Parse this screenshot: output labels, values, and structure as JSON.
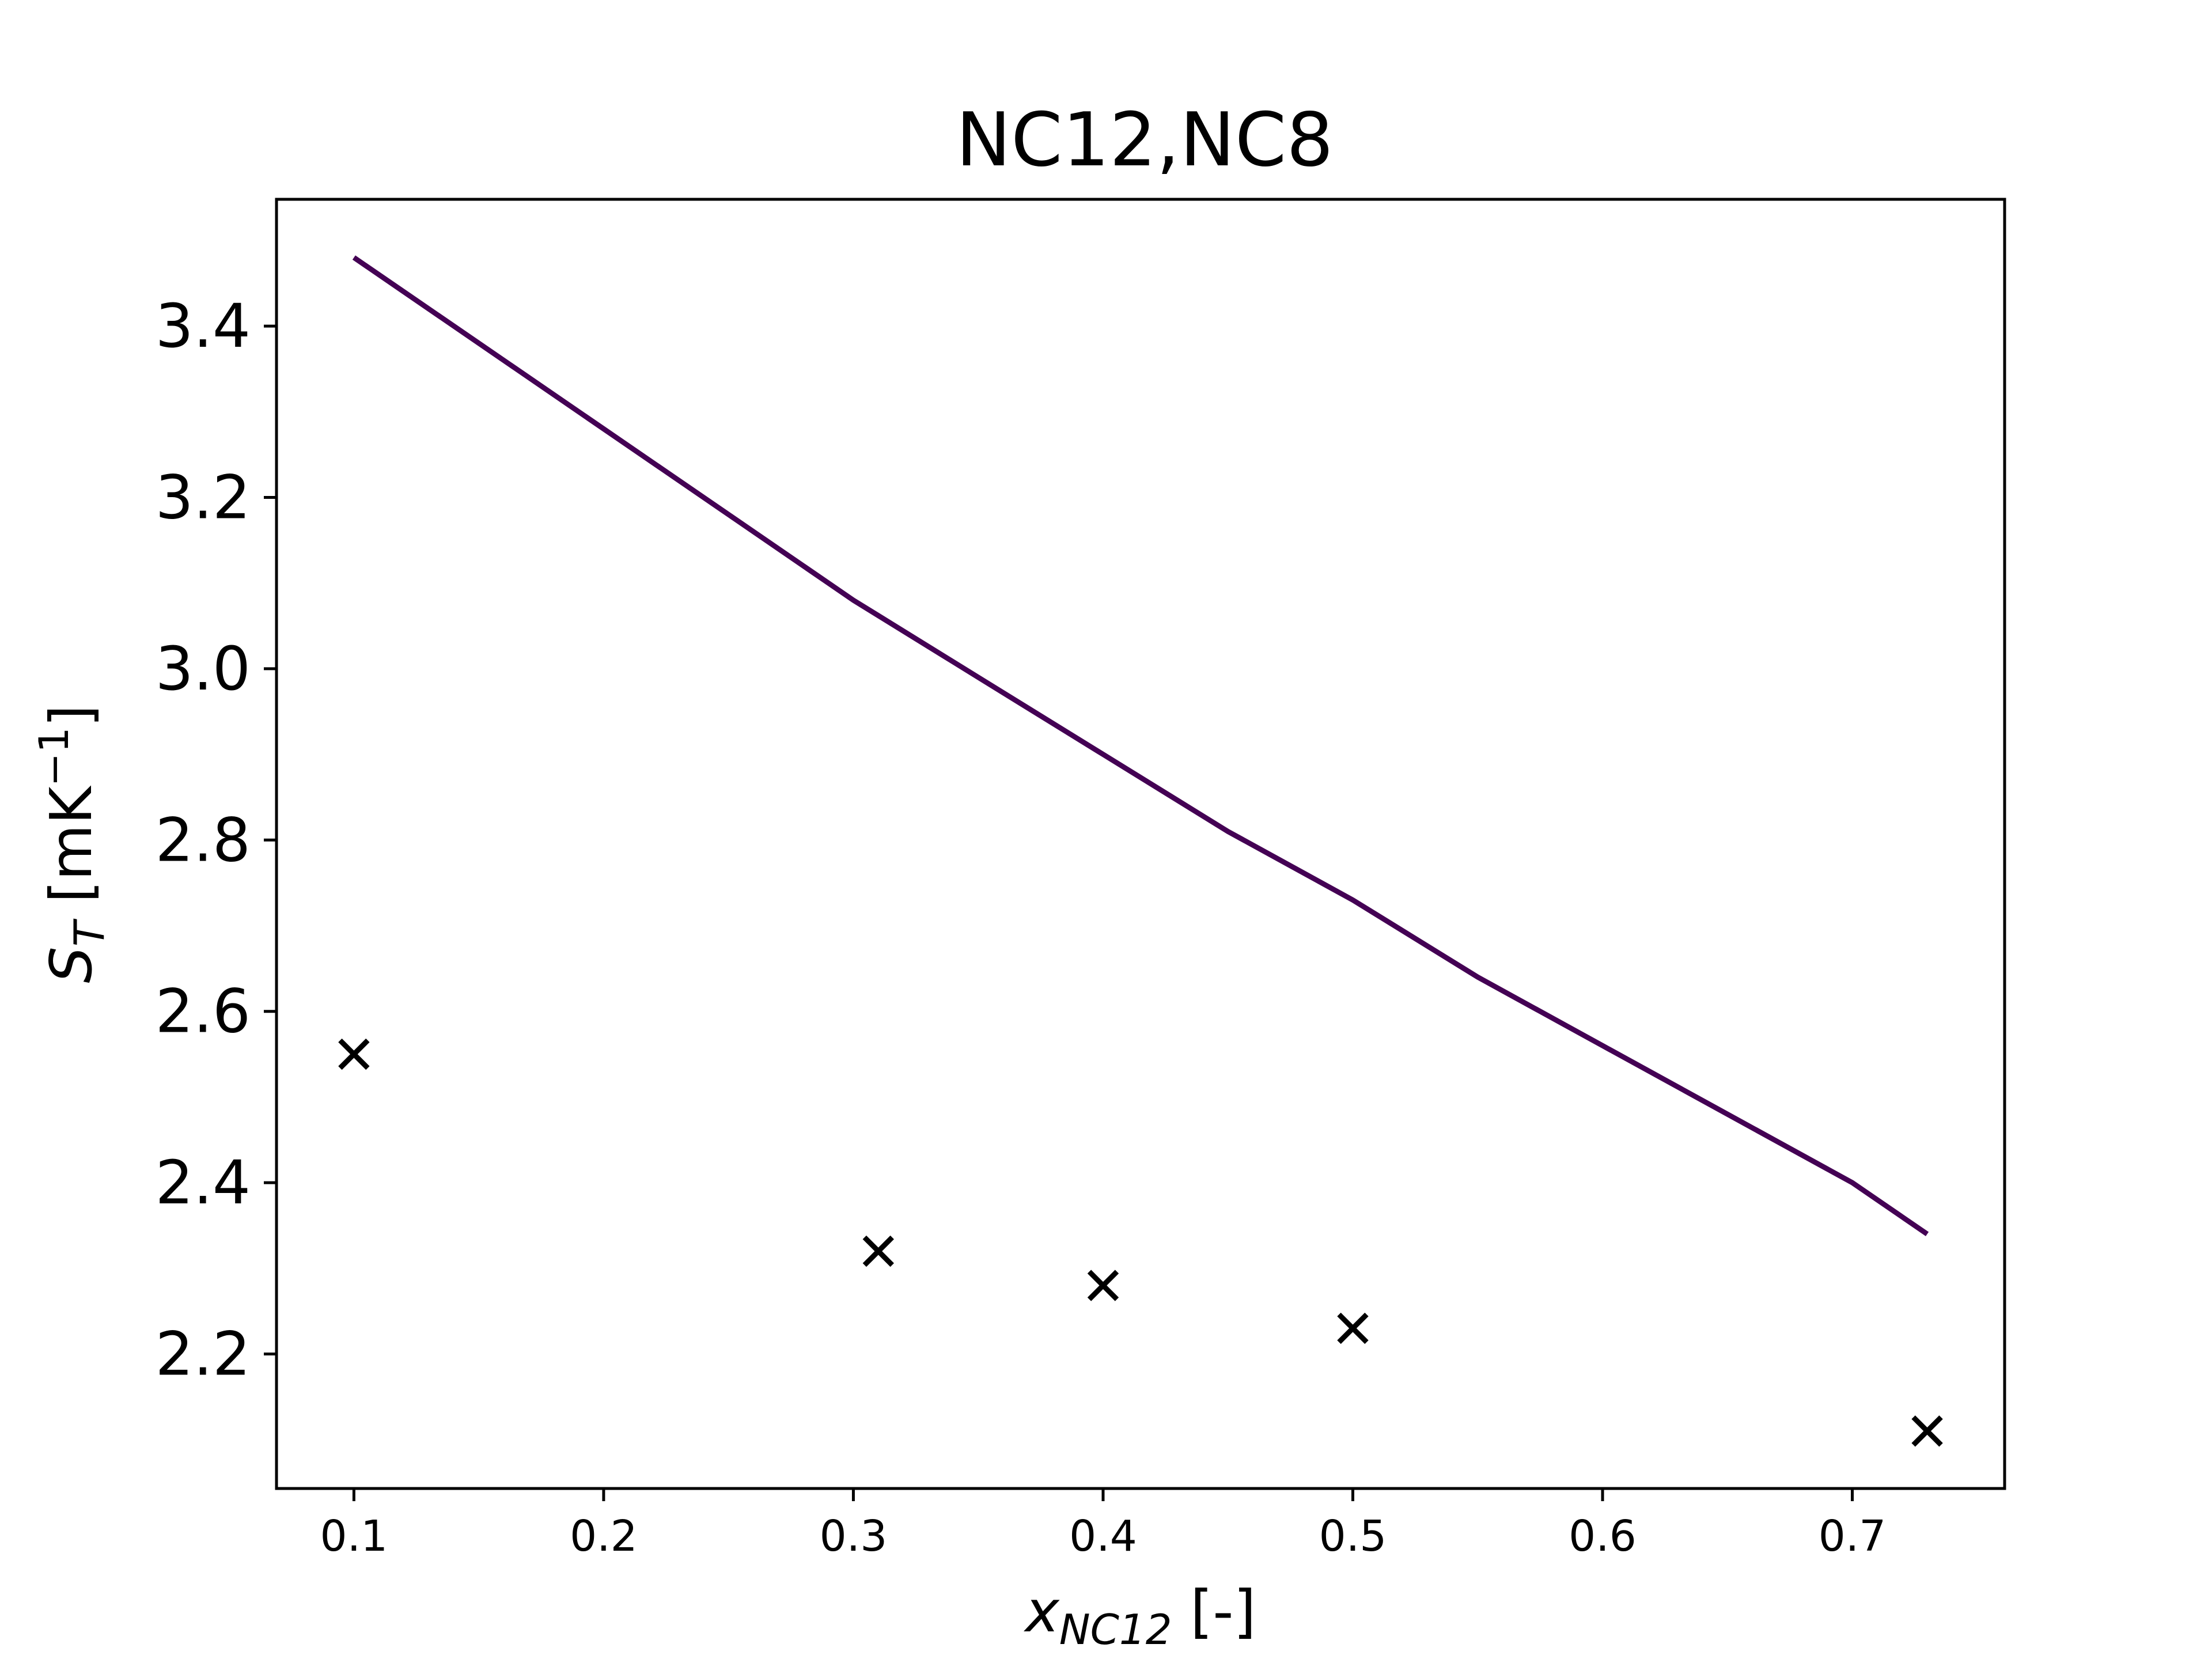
{
  "chart_data": {
    "type": "line",
    "title": "NC12,NC8",
    "xlabel": {
      "var": "x",
      "sub": "NC12",
      "unit": " [-]"
    },
    "ylabel": {
      "var": "S",
      "sub": "T",
      "unit_prefix": " [mK",
      "unit_sup": "−1",
      "unit_suffix": "]"
    },
    "xlim": [
      0.069,
      0.761
    ],
    "ylim": [
      2.043,
      3.548
    ],
    "xticks": [
      0.1,
      0.2,
      0.3,
      0.4,
      0.5,
      0.6,
      0.7
    ],
    "xtick_labels": [
      "0.1",
      "0.2",
      "0.3",
      "0.4",
      "0.5",
      "0.6",
      "0.7"
    ],
    "yticks": [
      2.2,
      2.4,
      2.6,
      2.8,
      3.0,
      3.2,
      3.4
    ],
    "ytick_labels": [
      "2.2",
      "2.4",
      "2.6",
      "2.8",
      "3.0",
      "3.2",
      "3.4"
    ],
    "grid": false,
    "series": [
      {
        "kind": "line",
        "color": "#440154",
        "x": [
          0.1,
          0.15,
          0.2,
          0.25,
          0.3,
          0.35,
          0.4,
          0.45,
          0.5,
          0.55,
          0.6,
          0.65,
          0.7,
          0.73
        ],
        "y": [
          3.48,
          3.38,
          3.28,
          3.18,
          3.08,
          2.99,
          2.9,
          2.81,
          2.73,
          2.64,
          2.56,
          2.48,
          2.4,
          2.34
        ]
      },
      {
        "kind": "scatter",
        "marker": "x",
        "color": "#000000",
        "x": [
          0.1,
          0.31,
          0.4,
          0.5,
          0.73
        ],
        "y": [
          2.55,
          2.32,
          2.28,
          2.23,
          2.11
        ]
      }
    ]
  }
}
